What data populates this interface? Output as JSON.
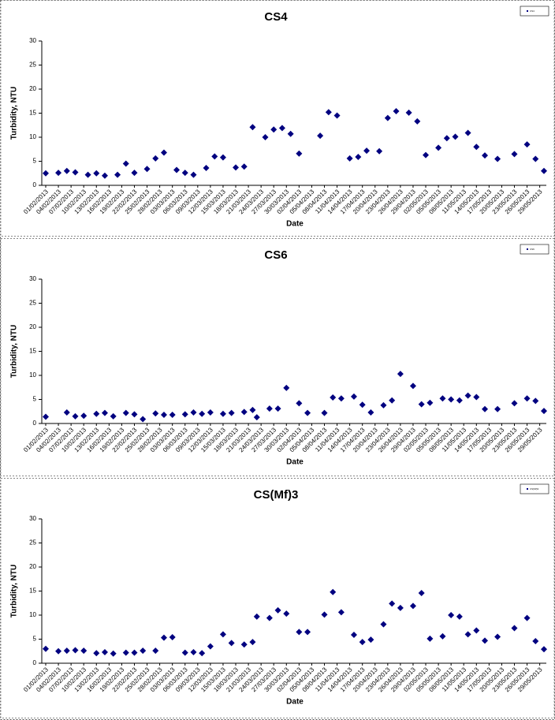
{
  "chart_data": [
    {
      "type": "scatter",
      "title": "CS4",
      "x_label": "Date",
      "y_label": "Turbidity, NTU",
      "legend": "top-right",
      "x": [
        "01/02/2013",
        "04/02/2013",
        "06/02/2013",
        "08/02/2013",
        "11/02/2013",
        "13/02/2013",
        "15/02/2013",
        "18/02/2013",
        "20/02/2013",
        "22/02/2013",
        "25/02/2013",
        "27/02/2013",
        "01/03/2013",
        "04/03/2013",
        "06/03/2013",
        "08/03/2013",
        "11/03/2013",
        "13/03/2013",
        "15/03/2013",
        "18/03/2013",
        "20/03/2013",
        "22/03/2013",
        "25/03/2013",
        "27/03/2013",
        "29/03/2013",
        "31/03/2013",
        "02/04/2013",
        "07/04/2013",
        "09/04/2013",
        "11/04/2013",
        "14/04/2013",
        "16/04/2013",
        "18/04/2013",
        "21/04/2013",
        "23/04/2013",
        "25/04/2013",
        "28/04/2013",
        "30/04/2013",
        "02/05/2013",
        "05/05/2013",
        "07/05/2013",
        "09/05/2013",
        "12/05/2013",
        "14/05/2013",
        "16/05/2013",
        "19/05/2013",
        "23/05/2013",
        "26/05/2013",
        "28/05/2013",
        "30/05/2013"
      ],
      "series": [
        {
          "name": "CS4",
          "color": "#000080",
          "values": [
            2.5,
            2.6,
            3.0,
            2.7,
            2.2,
            2.5,
            2.0,
            2.2,
            4.5,
            2.6,
            3.4,
            5.6,
            6.8,
            3.2,
            2.6,
            2.2,
            3.6,
            6.0,
            5.8,
            3.7,
            3.9,
            12.1,
            10.0,
            11.6,
            11.9,
            10.7,
            6.6,
            10.3,
            15.2,
            14.5,
            5.6,
            5.9,
            7.2,
            7.1,
            14.0,
            15.4,
            15.1,
            13.3,
            6.3,
            7.8,
            9.8,
            10.1,
            10.9,
            8.0,
            6.2,
            5.5,
            6.5,
            8.5,
            5.5,
            3.0
          ]
        }
      ],
      "xlim": [
        "01/02/2013",
        "30/05/2013"
      ],
      "xticks": [
        "01/02/2013",
        "04/02/2013",
        "07/02/2013",
        "10/02/2013",
        "13/02/2013",
        "16/02/2013",
        "19/02/2013",
        "22/02/2013",
        "25/02/2013",
        "28/02/2013",
        "03/03/2013",
        "06/03/2013",
        "09/03/2013",
        "12/03/2013",
        "15/03/2013",
        "18/03/2013",
        "21/03/2013",
        "24/03/2013",
        "27/03/2013",
        "30/03/2013",
        "02/04/2013",
        "05/04/2013",
        "08/04/2013",
        "11/04/2013",
        "14/04/2013",
        "17/04/2013",
        "20/04/2013",
        "23/04/2013",
        "26/04/2013",
        "29/04/2013",
        "02/05/2013",
        "05/05/2013",
        "08/05/2013",
        "11/05/2013",
        "14/05/2013",
        "17/05/2013",
        "20/05/2013",
        "23/05/2013",
        "26/05/2013",
        "29/05/2013"
      ],
      "ylim": [
        0,
        30
      ],
      "yticks": [
        0,
        5,
        10,
        15,
        20,
        25,
        30
      ],
      "grid": false
    },
    {
      "type": "scatter",
      "title": "CS6",
      "x_label": "Date",
      "y_label": "Turbidity, NTU",
      "legend": "top-right",
      "x": [
        "01/02/2013",
        "06/02/2013",
        "08/02/2013",
        "10/02/2013",
        "13/02/2013",
        "15/02/2013",
        "17/02/2013",
        "20/02/2013",
        "22/02/2013",
        "24/02/2013",
        "27/02/2013",
        "01/03/2013",
        "03/03/2013",
        "06/03/2013",
        "08/03/2013",
        "10/03/2013",
        "12/03/2013",
        "15/03/2013",
        "17/03/2013",
        "20/03/2013",
        "22/03/2013",
        "23/03/2013",
        "26/03/2013",
        "28/03/2013",
        "30/03/2013",
        "02/04/2013",
        "04/04/2013",
        "08/04/2013",
        "10/04/2013",
        "12/04/2013",
        "15/04/2013",
        "17/04/2013",
        "19/04/2013",
        "22/04/2013",
        "24/04/2013",
        "26/04/2013",
        "29/04/2013",
        "01/05/2013",
        "03/05/2013",
        "06/05/2013",
        "08/05/2013",
        "10/05/2013",
        "12/05/2013",
        "14/05/2013",
        "16/05/2013",
        "19/05/2013",
        "23/05/2013",
        "26/05/2013",
        "28/05/2013",
        "30/05/2013"
      ],
      "series": [
        {
          "name": "CS6",
          "color": "#000080",
          "values": [
            1.4,
            2.3,
            1.5,
            1.6,
            2.0,
            2.2,
            1.5,
            2.2,
            1.9,
            0.9,
            2.1,
            1.8,
            1.8,
            1.9,
            2.3,
            2.0,
            2.3,
            2.0,
            2.2,
            2.4,
            2.8,
            1.3,
            3.1,
            3.1,
            7.4,
            4.2,
            2.2,
            2.2,
            5.4,
            5.2,
            5.6,
            3.9,
            2.3,
            3.8,
            4.8,
            10.3,
            7.8,
            4.0,
            4.3,
            5.2,
            5.0,
            4.8,
            5.8,
            5.5,
            3.0,
            3.0,
            4.2,
            5.2,
            4.7,
            2.6
          ]
        }
      ],
      "xlim": [
        "01/02/2013",
        "30/05/2013"
      ],
      "xticks": [
        "01/02/2013",
        "04/02/2013",
        "07/02/2013",
        "10/02/2013",
        "13/02/2013",
        "16/02/2013",
        "19/02/2013",
        "22/02/2013",
        "25/02/2013",
        "28/02/2013",
        "03/03/2013",
        "06/03/2013",
        "09/03/2013",
        "12/03/2013",
        "15/03/2013",
        "18/03/2013",
        "21/03/2013",
        "24/03/2013",
        "27/03/2013",
        "30/03/2013",
        "02/04/2013",
        "05/04/2013",
        "08/04/2013",
        "11/04/2013",
        "14/04/2013",
        "17/04/2013",
        "20/04/2013",
        "23/04/2013",
        "26/04/2013",
        "29/04/2013",
        "02/05/2013",
        "05/05/2013",
        "08/05/2013",
        "11/05/2013",
        "14/05/2013",
        "17/05/2013",
        "20/05/2013",
        "23/05/2013",
        "26/05/2013",
        "29/05/2013"
      ],
      "ylim": [
        0,
        30
      ],
      "yticks": [
        0,
        5,
        10,
        15,
        20,
        25,
        30
      ],
      "grid": false
    },
    {
      "type": "scatter",
      "title": "CS(Mf)3",
      "x_label": "Date",
      "y_label": "Turbidity, NTU",
      "legend": "top-right",
      "x": [
        "01/02/2013",
        "04/02/2013",
        "06/02/2013",
        "08/02/2013",
        "10/02/2013",
        "13/02/2013",
        "15/02/2013",
        "17/02/2013",
        "20/02/2013",
        "22/02/2013",
        "24/02/2013",
        "27/02/2013",
        "01/03/2013",
        "03/03/2013",
        "06/03/2013",
        "08/03/2013",
        "10/03/2013",
        "12/03/2013",
        "15/03/2013",
        "17/03/2013",
        "20/03/2013",
        "22/03/2013",
        "23/03/2013",
        "26/03/2013",
        "28/03/2013",
        "30/03/2013",
        "02/04/2013",
        "04/04/2013",
        "08/04/2013",
        "10/04/2013",
        "12/04/2013",
        "15/04/2013",
        "17/04/2013",
        "19/04/2013",
        "22/04/2013",
        "24/04/2013",
        "26/04/2013",
        "29/04/2013",
        "01/05/2013",
        "03/05/2013",
        "06/05/2013",
        "08/05/2013",
        "10/05/2013",
        "12/05/2013",
        "14/05/2013",
        "16/05/2013",
        "19/05/2013",
        "23/05/2013",
        "26/05/2013",
        "28/05/2013",
        "30/05/2013"
      ],
      "series": [
        {
          "name": "CS(Mf)3",
          "color": "#000080",
          "values": [
            3.0,
            2.5,
            2.6,
            2.7,
            2.6,
            2.1,
            2.3,
            2.0,
            2.2,
            2.2,
            2.6,
            2.6,
            5.3,
            5.4,
            2.2,
            2.3,
            2.1,
            3.5,
            6.0,
            4.2,
            3.9,
            4.4,
            9.7,
            9.4,
            11.0,
            10.3,
            6.5,
            6.5,
            10.1,
            14.8,
            10.6,
            5.9,
            4.4,
            4.9,
            8.1,
            12.4,
            11.5,
            11.9,
            14.6,
            5.1,
            5.6,
            10.0,
            9.7,
            6.0,
            6.8,
            4.7,
            5.5,
            7.3,
            9.4,
            4.6,
            2.9
          ]
        }
      ],
      "xlim": [
        "01/02/2013",
        "30/05/2013"
      ],
      "xticks": [
        "01/02/2013",
        "04/02/2013",
        "07/02/2013",
        "10/02/2013",
        "13/02/2013",
        "16/02/2013",
        "19/02/2013",
        "22/02/2013",
        "25/02/2013",
        "28/02/2013",
        "03/03/2013",
        "06/03/2013",
        "09/03/2013",
        "12/03/2013",
        "15/03/2013",
        "18/03/2013",
        "21/03/2013",
        "24/03/2013",
        "27/03/2013",
        "30/03/2013",
        "02/04/2013",
        "05/04/2013",
        "08/04/2013",
        "11/04/2013",
        "14/04/2013",
        "17/04/2013",
        "20/04/2013",
        "23/04/2013",
        "26/04/2013",
        "29/04/2013",
        "02/05/2013",
        "05/05/2013",
        "08/05/2013",
        "11/05/2013",
        "14/05/2013",
        "17/05/2013",
        "20/05/2013",
        "23/05/2013",
        "26/05/2013",
        "29/05/2013"
      ],
      "ylim": [
        0,
        30
      ],
      "yticks": [
        0,
        5,
        10,
        15,
        20,
        25,
        30
      ],
      "grid": false
    }
  ]
}
